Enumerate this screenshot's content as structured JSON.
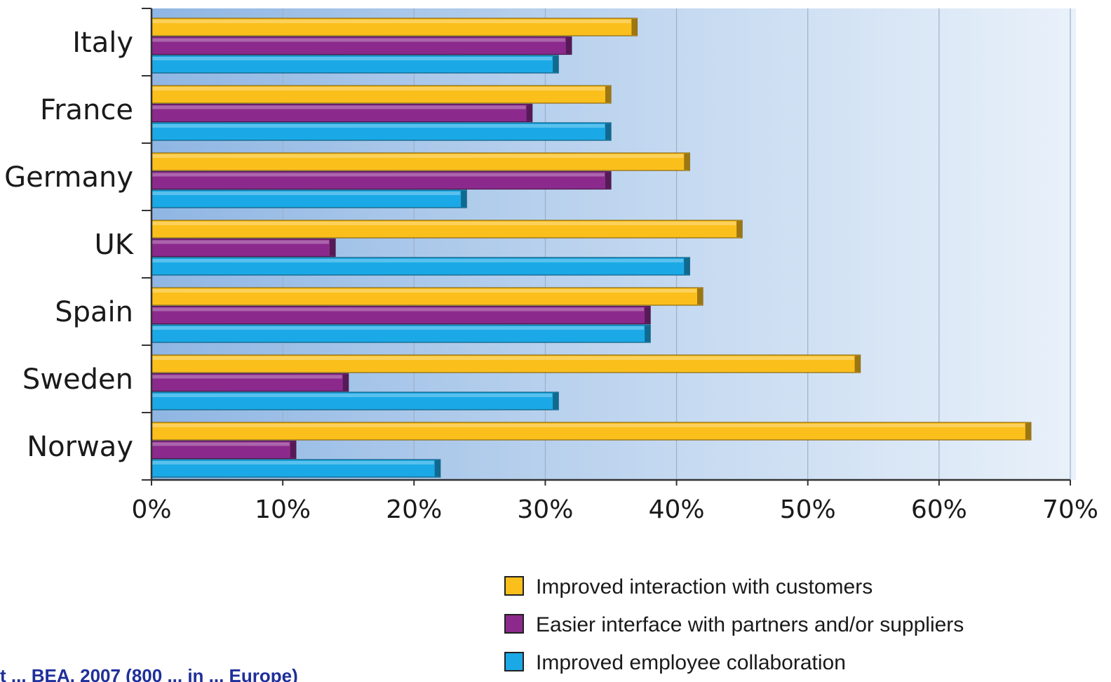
{
  "chart_data": {
    "type": "bar",
    "orientation": "horizontal",
    "categories": [
      "Italy",
      "France",
      "Germany",
      "UK",
      "Spain",
      "Sweden",
      "Norway"
    ],
    "series": [
      {
        "name": "Improved interaction with customers",
        "color": "#fbbf1c",
        "values": [
          37,
          35,
          41,
          45,
          42,
          54,
          67
        ]
      },
      {
        "name": "Easier interface with partners and/or suppliers",
        "color": "#8b2a8c",
        "values": [
          32,
          29,
          35,
          14,
          38,
          15,
          11
        ]
      },
      {
        "name": "Improved employee collaboration",
        "color": "#1aa9e6",
        "values": [
          31,
          35,
          24,
          41,
          38,
          31,
          22
        ]
      }
    ],
    "xlim": [
      0,
      70
    ],
    "xticks": [
      "0%",
      "10%",
      "20%",
      "30%",
      "40%",
      "50%",
      "60%",
      "70%"
    ],
    "grid": true,
    "legend_position": "bottom-right"
  },
  "source_note": "t ... BEA, 2007 (800 ... in ... Europe)"
}
